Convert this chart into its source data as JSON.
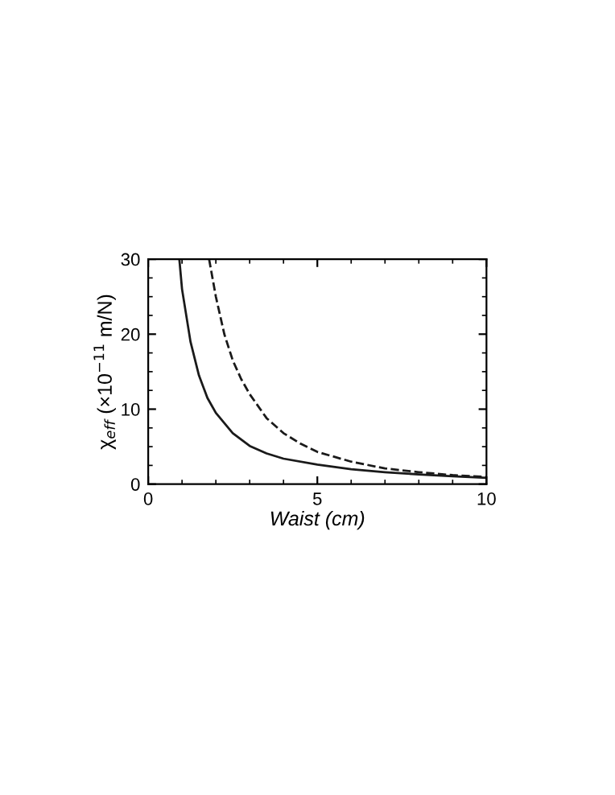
{
  "chart_data": {
    "type": "line",
    "xlabel": "Waist (cm)",
    "ylabel": "χ$_{eff}$ (×10$^{−11}$ m/N)",
    "xlim": [
      0,
      10
    ],
    "ylim": [
      0,
      30
    ],
    "xticks": [
      0,
      5,
      10
    ],
    "yticks": [
      0,
      10,
      20,
      30
    ],
    "grid": false,
    "legend": false,
    "marker": "none",
    "series": [
      {
        "color": "#1a1a1a",
        "line_style": "solid",
        "x": [
          0.92,
          1.0,
          1.25,
          1.5,
          1.75,
          2.0,
          2.5,
          3.0,
          3.5,
          4.0,
          5.0,
          6.0,
          7.0,
          8.0,
          9.0,
          10.0
        ],
        "values": [
          30,
          26,
          19,
          14.5,
          11.5,
          9.5,
          6.8,
          5.1,
          4.1,
          3.4,
          2.6,
          2.0,
          1.6,
          1.3,
          1.05,
          0.85
        ]
      },
      {
        "color": "#1a1a1a",
        "line_style": "dashed",
        "x": [
          1.8,
          2.0,
          2.25,
          2.5,
          2.75,
          3.0,
          3.5,
          4.0,
          4.5,
          5.0,
          6.0,
          7.0,
          8.0,
          9.0,
          10.0
        ],
        "values": [
          30,
          25,
          20,
          16.5,
          14,
          12,
          8.8,
          6.8,
          5.4,
          4.3,
          3.0,
          2.1,
          1.6,
          1.2,
          0.95
        ]
      }
    ]
  }
}
